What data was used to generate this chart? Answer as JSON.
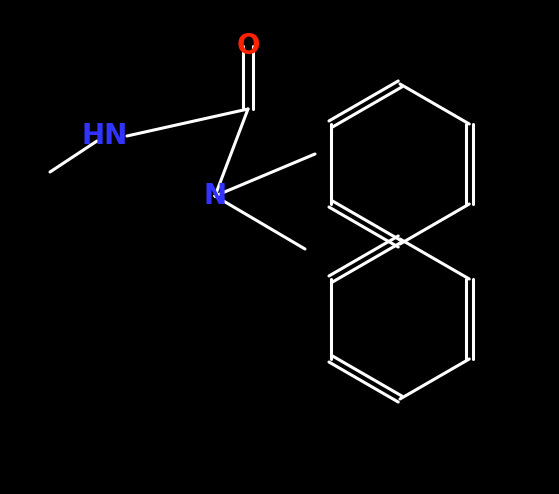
{
  "background_color": "#000000",
  "bond_color": "#ffffff",
  "bond_width": 2.2,
  "label_O": {
    "text": "O",
    "color": "#ff2200",
    "fontsize": 20,
    "fontweight": "bold"
  },
  "label_HN": {
    "text": "HN",
    "color": "#3333ff",
    "fontsize": 20,
    "fontweight": "bold"
  },
  "label_N": {
    "text": "N",
    "color": "#3333ff",
    "fontsize": 20,
    "fontweight": "bold"
  },
  "figsize": [
    5.59,
    4.94
  ],
  "dpi": 100
}
